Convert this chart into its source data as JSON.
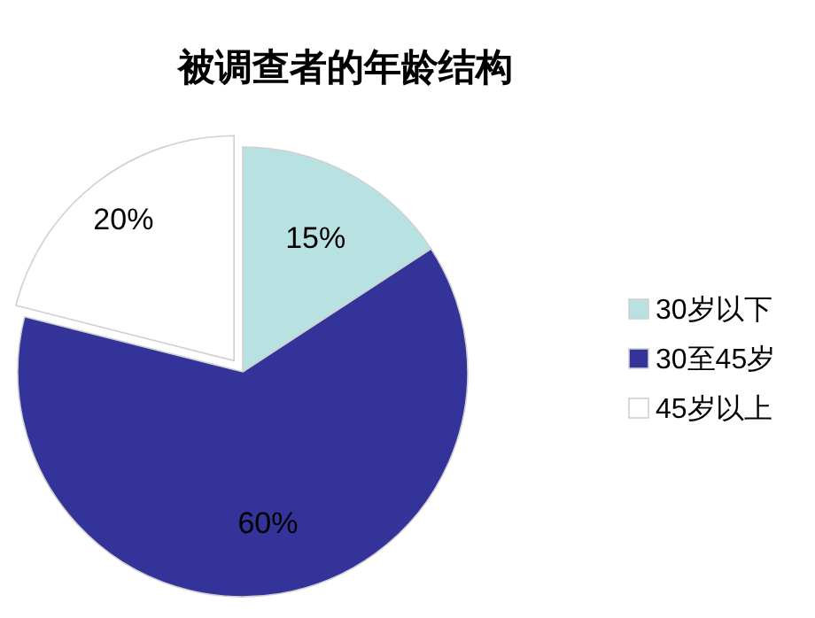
{
  "chart_data": {
    "type": "pie",
    "title": "被调查者的年龄结构",
    "categories": [
      "30岁以下",
      "30至45岁",
      "45岁以上"
    ],
    "values": [
      15,
      60,
      20
    ],
    "value_labels": [
      "15%",
      "60%",
      "20%"
    ],
    "colors": [
      "#b8e2e2",
      "#333399",
      "#ffffff"
    ],
    "legend": "right"
  }
}
